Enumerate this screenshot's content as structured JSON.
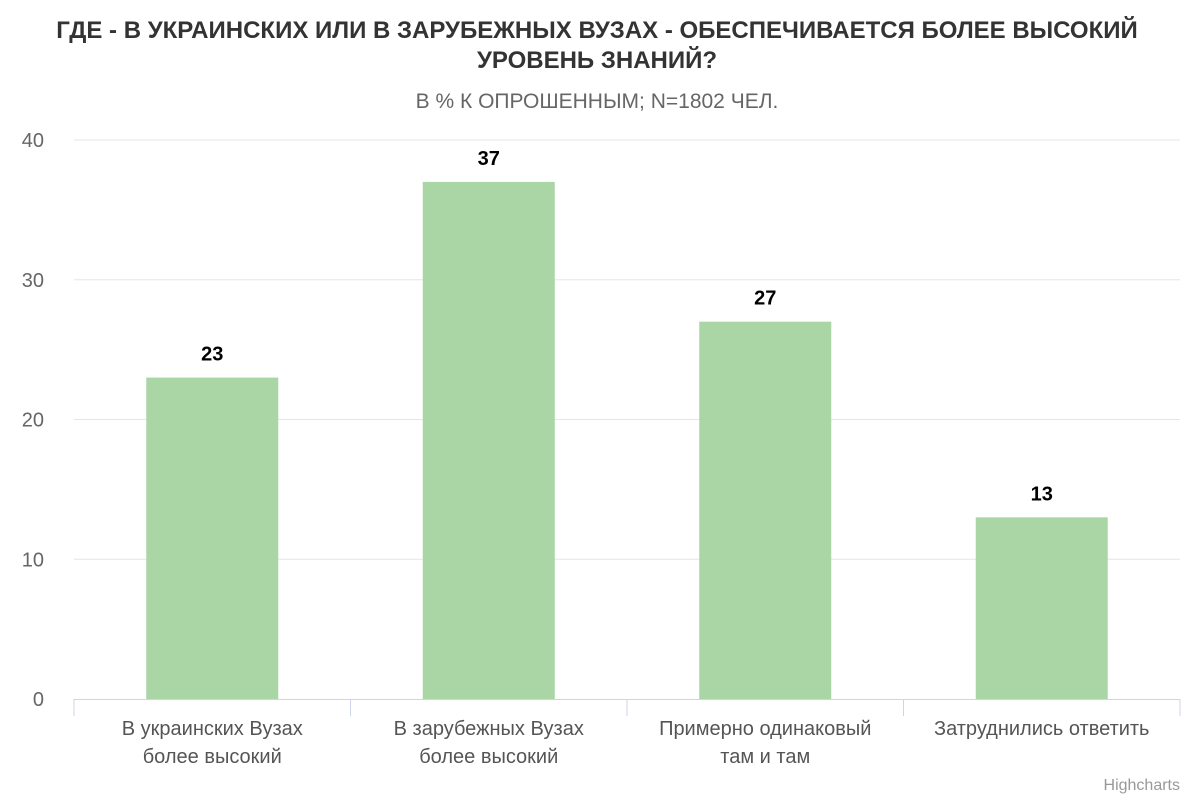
{
  "chart_data": {
    "type": "bar",
    "title_lines": [
      "ГДЕ - В УКРАИНСКИХ ИЛИ В ЗАРУБЕЖНЫХ ВУЗАХ - ОБЕСПЕЧИВАЕТСЯ БОЛЕЕ ВЫСОКИЙ",
      "УРОВЕНЬ ЗНАНИЙ?"
    ],
    "subtitle": "В % К ОПРОШЕННЫМ; N=1802 ЧЕЛ.",
    "categories": [
      [
        "В украинских Вузах",
        "более высокий"
      ],
      [
        "В зарубежных Вузах",
        "более высокий"
      ],
      [
        "Примерно одинаковый",
        "там и там"
      ],
      [
        "Затруднились ответить"
      ]
    ],
    "values": [
      23,
      37,
      27,
      13
    ],
    "data_labels": [
      "23",
      "37",
      "27",
      "13"
    ],
    "ylim": [
      0,
      40
    ],
    "yticks": [
      0,
      10,
      20,
      30,
      40
    ],
    "ytick_labels": [
      "0",
      "10",
      "20",
      "30",
      "40"
    ],
    "xlabel": "",
    "ylabel": "",
    "grid": true,
    "legend": "none",
    "credit": "Highcharts",
    "colors": {
      "bar": "#a9d6a4",
      "grid": "#e6e6e6",
      "axis": "#ccd6eb"
    }
  }
}
